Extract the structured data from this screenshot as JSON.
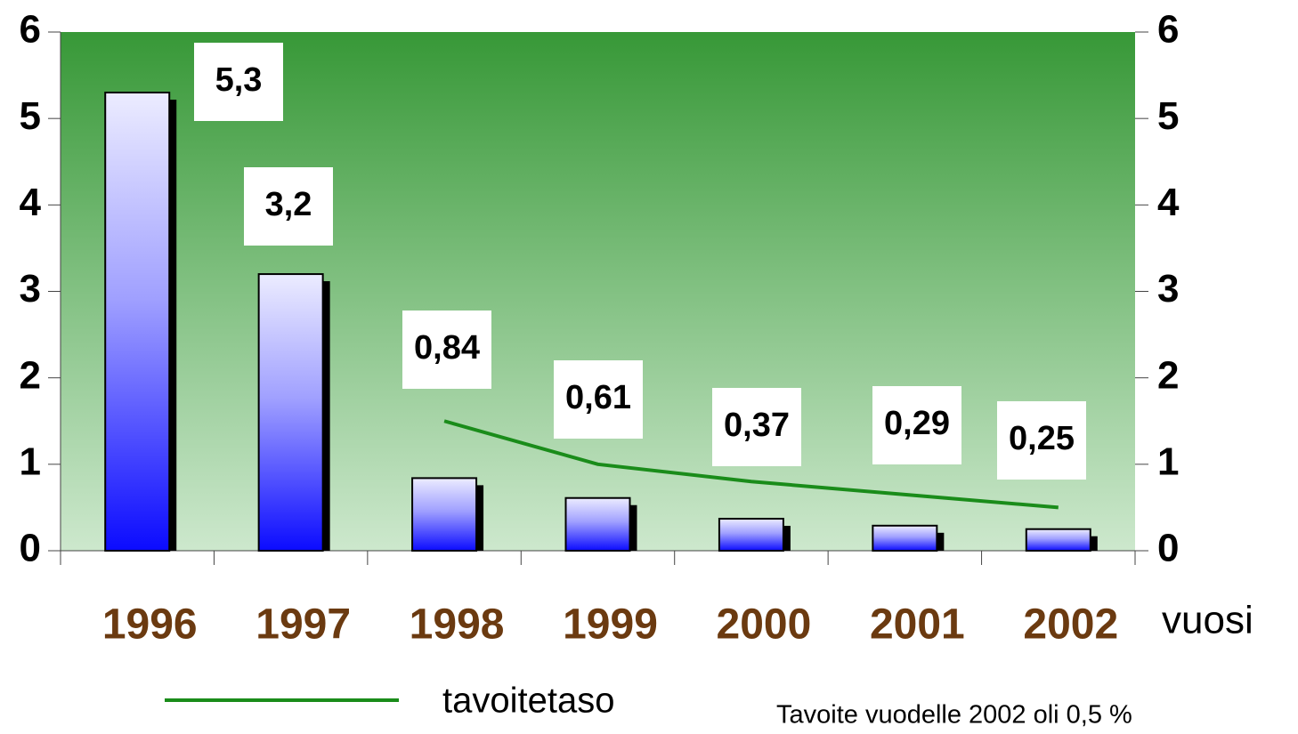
{
  "chart_data": {
    "type": "bar",
    "categories": [
      "1996",
      "1997",
      "1998",
      "1999",
      "2000",
      "2001",
      "2002"
    ],
    "values": [
      5.3,
      3.2,
      0.84,
      0.61,
      0.37,
      0.29,
      0.25
    ],
    "value_labels": [
      "5,3",
      "3,2",
      "0,84",
      "0,61",
      "0,37",
      "0,29",
      "0,25"
    ],
    "x_label": "vuosi",
    "series": [
      {
        "name": "tavoitetaso",
        "color": "#1a8c1a",
        "type": "line",
        "values": [
          null,
          null,
          1.5,
          1.0,
          0.8,
          0.65,
          0.5
        ]
      }
    ],
    "annotation": "Tavoite vuodelle 2002 oli 0,5 %",
    "ylim": [
      0,
      6
    ],
    "yticks": [
      0,
      1,
      2,
      3,
      4,
      5,
      6
    ],
    "y2lim": [
      0,
      6
    ],
    "y2ticks": [
      0,
      1,
      2,
      3,
      4,
      5,
      6
    ],
    "grid": false
  }
}
